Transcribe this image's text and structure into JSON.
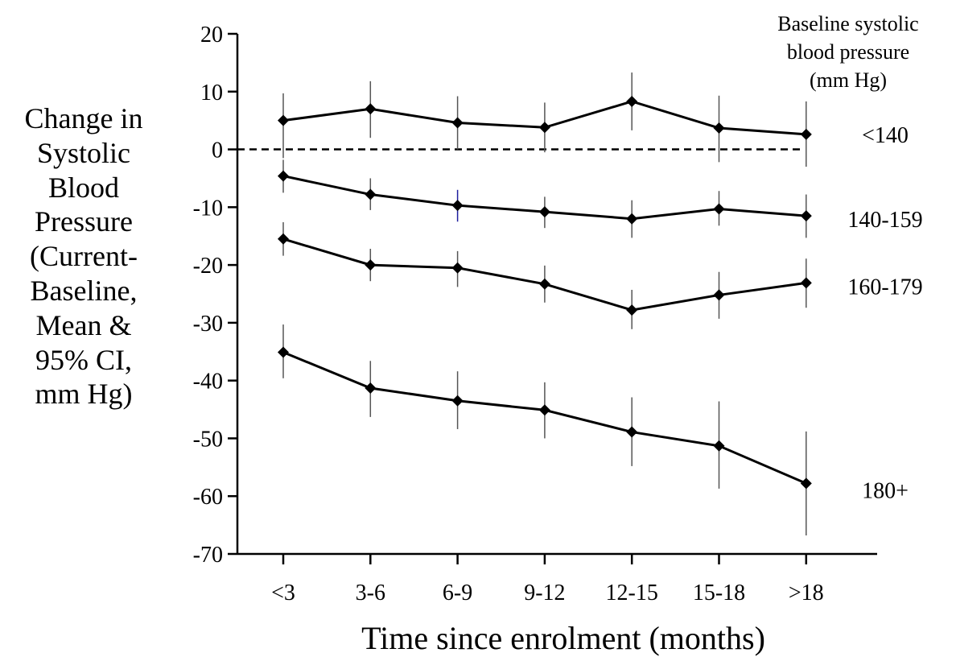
{
  "chart_data": {
    "type": "line",
    "xlabel": "Time since enrolment (months)",
    "ylabel_lines": [
      "Change in",
      "Systolic",
      "Blood",
      "Pressure",
      "(Current-",
      "Baseline,",
      "Mean &",
      "95% CI,",
      "mm Hg)"
    ],
    "legend_title_lines": [
      "Baseline systolic",
      "blood pressure",
      "(mm Hg)"
    ],
    "categories": [
      "<3",
      "3-6",
      "6-9",
      "9-12",
      "12-15",
      "15-18",
      ">18"
    ],
    "ylim": [
      -70,
      20
    ],
    "yticks": [
      20,
      10,
      0,
      -10,
      -20,
      -30,
      -40,
      -50,
      -60,
      -70
    ],
    "reference_line": {
      "y": 0,
      "style": "dashed"
    },
    "grid": false,
    "series": [
      {
        "name": "<140",
        "values": [
          5,
          7,
          4.6,
          3.8,
          8.3,
          3.7,
          2.6
        ],
        "ci_low": [
          -1.5,
          2,
          0,
          -0.5,
          3.3,
          -2.2,
          -3
        ],
        "ci_high": [
          9.7,
          11.8,
          9.2,
          8.1,
          13.3,
          9.3,
          8.3
        ]
      },
      {
        "name": "140-159",
        "values": [
          -4.6,
          -7.8,
          -9.7,
          -10.8,
          -12,
          -10.3,
          -11.5
        ],
        "ci_low": [
          -7.5,
          -10.5,
          -12.5,
          -13.6,
          -15.3,
          -13.2,
          -15.3
        ],
        "ci_high": [
          -1.8,
          -5,
          -7,
          -8.2,
          -8.8,
          -7.2,
          -7.8
        ]
      },
      {
        "name": "160-179",
        "values": [
          -15.5,
          -20,
          -20.5,
          -23.3,
          -27.8,
          -25.2,
          -23.1
        ],
        "ci_low": [
          -18.4,
          -22.8,
          -23.8,
          -26.5,
          -31.1,
          -29.3,
          -27.4
        ],
        "ci_high": [
          -12.6,
          -17.2,
          -17.6,
          -20.1,
          -24.3,
          -21.2,
          -18.9
        ]
      },
      {
        "name": "180+",
        "values": [
          -35.1,
          -41.3,
          -43.5,
          -45.1,
          -48.9,
          -51.3,
          -57.8
        ],
        "ci_low": [
          -39.6,
          -46.3,
          -48.4,
          -50,
          -54.8,
          -58.7,
          -66.8
        ],
        "ci_high": [
          -30.3,
          -36.6,
          -38.4,
          -40.3,
          -42.9,
          -43.6,
          -48.8
        ]
      }
    ],
    "colors": {
      "line": "#000000",
      "highlight_errorbar": "#1f1f9f"
    }
  }
}
